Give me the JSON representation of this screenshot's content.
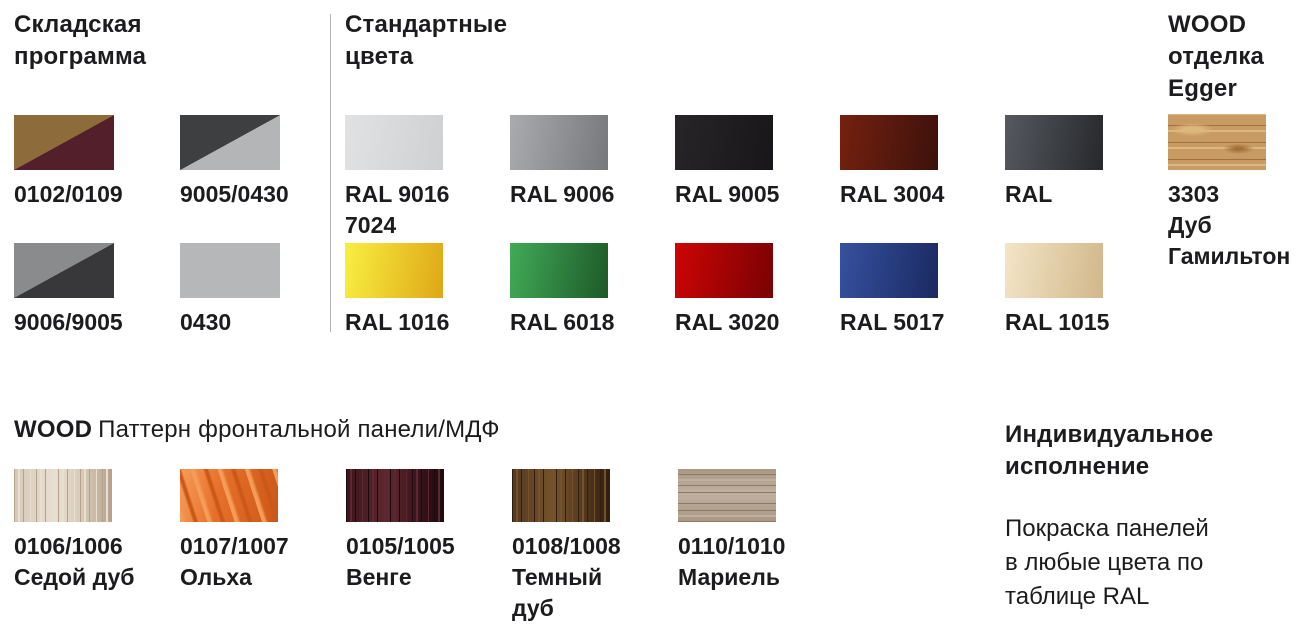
{
  "page": {
    "background": "#ffffff",
    "text_color": "#1c1c1e",
    "divider_color": "#b3b3b3"
  },
  "warehouse": {
    "title_lines": [
      "Складская",
      "программа"
    ],
    "items": [
      {
        "label_lines": [
          "0102/0109"
        ],
        "fill": "split",
        "colors": [
          "#8d6b3a",
          "#521f2a"
        ]
      },
      {
        "label_lines": [
          "9005/0430"
        ],
        "fill": "split",
        "colors": [
          "#3e3f41",
          "#b4b5b7"
        ]
      },
      {
        "label_lines": [
          "9006/9005"
        ],
        "fill": "split",
        "colors": [
          "#8a8b8d",
          "#38383a"
        ]
      },
      {
        "label_lines": [
          "0430"
        ],
        "fill": "solid",
        "colors": [
          "#b5b7b9"
        ]
      }
    ]
  },
  "standard": {
    "title_lines": [
      "Стандартные",
      "цвета"
    ],
    "items": [
      {
        "label_lines": [
          "RAL 9016",
          "7024"
        ],
        "fill": "gradient",
        "colors": [
          "#e0e2e3",
          "#ced0d2"
        ]
      },
      {
        "label_lines": [
          "RAL 9006"
        ],
        "fill": "gradient",
        "colors": [
          "#a9abae",
          "#77787b"
        ]
      },
      {
        "label_lines": [
          "RAL 9005"
        ],
        "fill": "gradient",
        "colors": [
          "#272528",
          "#181619"
        ]
      },
      {
        "label_lines": [
          "RAL 3004"
        ],
        "fill": "gradient",
        "colors": [
          "#75210f",
          "#3c110c"
        ]
      },
      {
        "label_lines": [
          "RAL"
        ],
        "fill": "gradient",
        "colors": [
          "#565960",
          "#26282b"
        ]
      },
      {
        "label_lines": [
          "RAL 1016"
        ],
        "fill": "gradient",
        "colors": [
          "#f9ef41",
          "#dea717"
        ]
      },
      {
        "label_lines": [
          "RAL 6018"
        ],
        "fill": "gradient",
        "colors": [
          "#42aa57",
          "#1d5929"
        ]
      },
      {
        "label_lines": [
          "RAL 3020"
        ],
        "fill": "gradient",
        "colors": [
          "#cd0405",
          "#790203"
        ]
      },
      {
        "label_lines": [
          "RAL 5017"
        ],
        "fill": "gradient",
        "colors": [
          "#36519f",
          "#1a2961"
        ]
      },
      {
        "label_lines": [
          "RAL 1015"
        ],
        "fill": "gradient",
        "colors": [
          "#f3e5c7",
          "#d1b78a"
        ]
      }
    ]
  },
  "wood_egger": {
    "title_lines": [
      "WOOD",
      "отделка",
      "Egger"
    ],
    "items": [
      {
        "label_lines": [
          "3303",
          "Дуб",
          "Гамильтон"
        ],
        "fill": "wood-knot",
        "colors": [
          "#c89b64",
          "#ddb87d",
          "#a1713a"
        ]
      }
    ]
  },
  "wood_pattern": {
    "title_bold": "WOOD",
    "title_rest": "Паттерн фронтальной панели/МДФ",
    "items": [
      {
        "label_lines": [
          "0106/1006",
          "Седой дуб"
        ],
        "fill": "wood-v",
        "colors": [
          "#d5c8b6",
          "#e8dfd3",
          "#b6a28b"
        ]
      },
      {
        "label_lines": [
          "0107/1007",
          "Ольха"
        ],
        "fill": "wood-d",
        "colors": [
          "#e6702b",
          "#f59c58",
          "#cc5817"
        ]
      },
      {
        "label_lines": [
          "0105/1005",
          "Венге"
        ],
        "fill": "wood-v",
        "colors": [
          "#3b161c",
          "#5d2830",
          "#1d0a0e"
        ]
      },
      {
        "label_lines": [
          "0108/1008",
          "Темный",
          "дуб"
        ],
        "fill": "wood-v",
        "colors": [
          "#543a20",
          "#75522c",
          "#301e0e"
        ]
      },
      {
        "label_lines": [
          "0110/1010",
          "Мариель"
        ],
        "fill": "wood-h",
        "colors": [
          "#a99783",
          "#beaf9f",
          "#8d7a67"
        ]
      }
    ]
  },
  "custom": {
    "title_lines": [
      "Индивидуальное",
      "исполнение"
    ],
    "body_lines": [
      "Покраска панелей",
      "в любые цвета по",
      "таблице RAL"
    ]
  }
}
